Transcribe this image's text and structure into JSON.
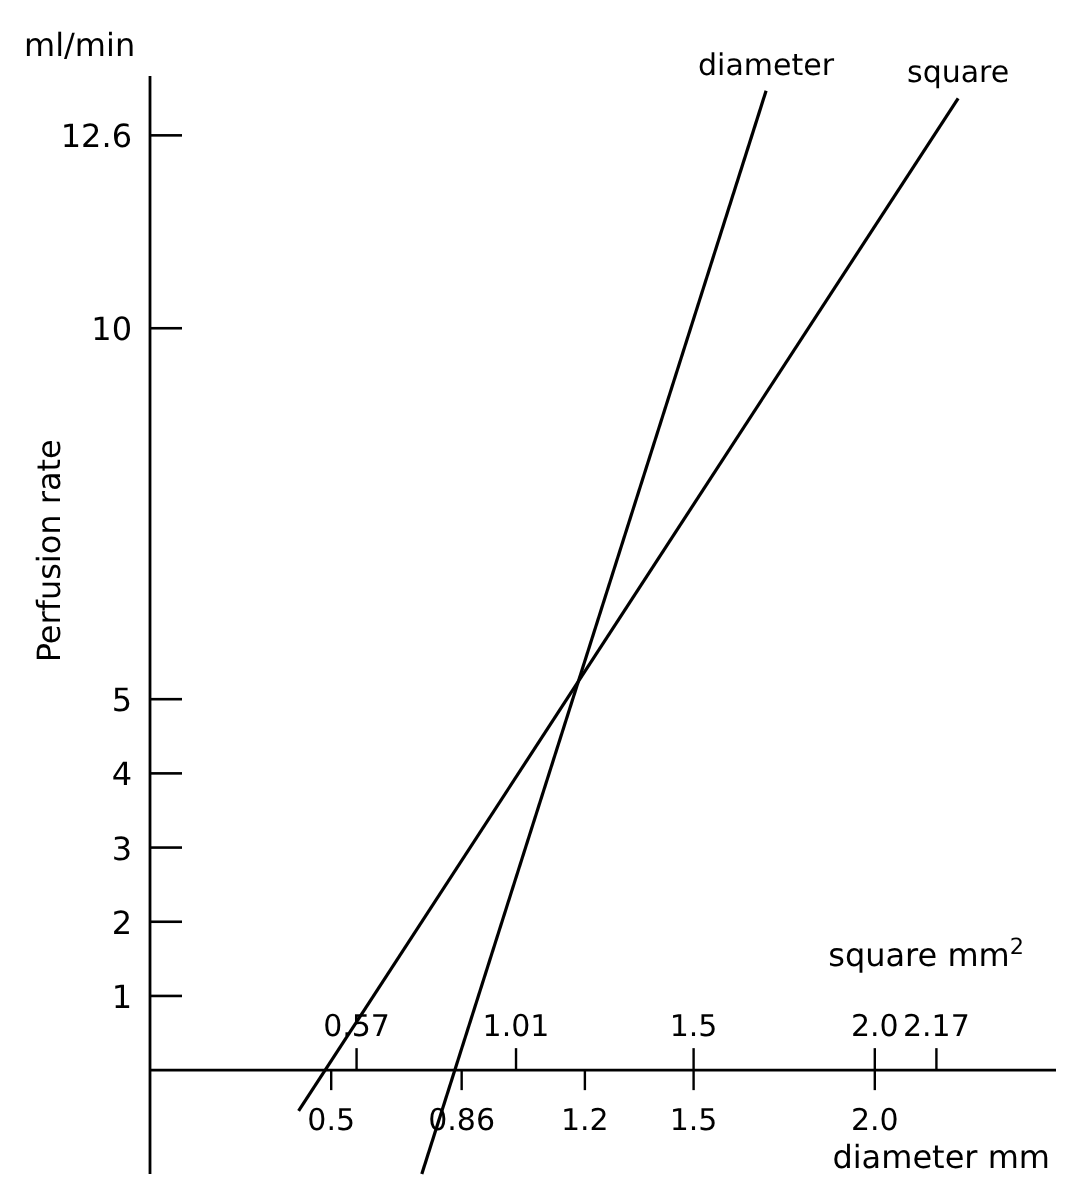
{
  "chart_data": {
    "type": "line",
    "ylabel": "Perfusion rate",
    "xlabel": "diameter mm",
    "x2label": "square mm$^{2}$",
    "annotations": [
      "ml/min"
    ],
    "xlim": [
      0,
      2.5
    ],
    "ylim": [
      -1.4,
      13.4
    ],
    "x2lim": [
      0,
      2.5
    ],
    "xticks": [
      0.5,
      0.86,
      1.2,
      1.5,
      {
        "value": 2,
        "label": "2.0"
      }
    ],
    "x2ticks": [
      0.57,
      1.01,
      1.5,
      {
        "value": 2,
        "label": "2.0"
      },
      2.17
    ],
    "yticks": [
      1,
      2,
      3,
      4,
      5,
      10,
      12.6
    ],
    "series": [
      {
        "name": "diameter",
        "color": "#000000",
        "x": [
          0.75,
          1.7
        ],
        "values": [
          -1.4,
          13.2
        ]
      },
      {
        "name": "square",
        "color": "#000000",
        "x": [
          0.41,
          2.23
        ],
        "values": [
          -0.55,
          13.1
        ]
      }
    ]
  }
}
